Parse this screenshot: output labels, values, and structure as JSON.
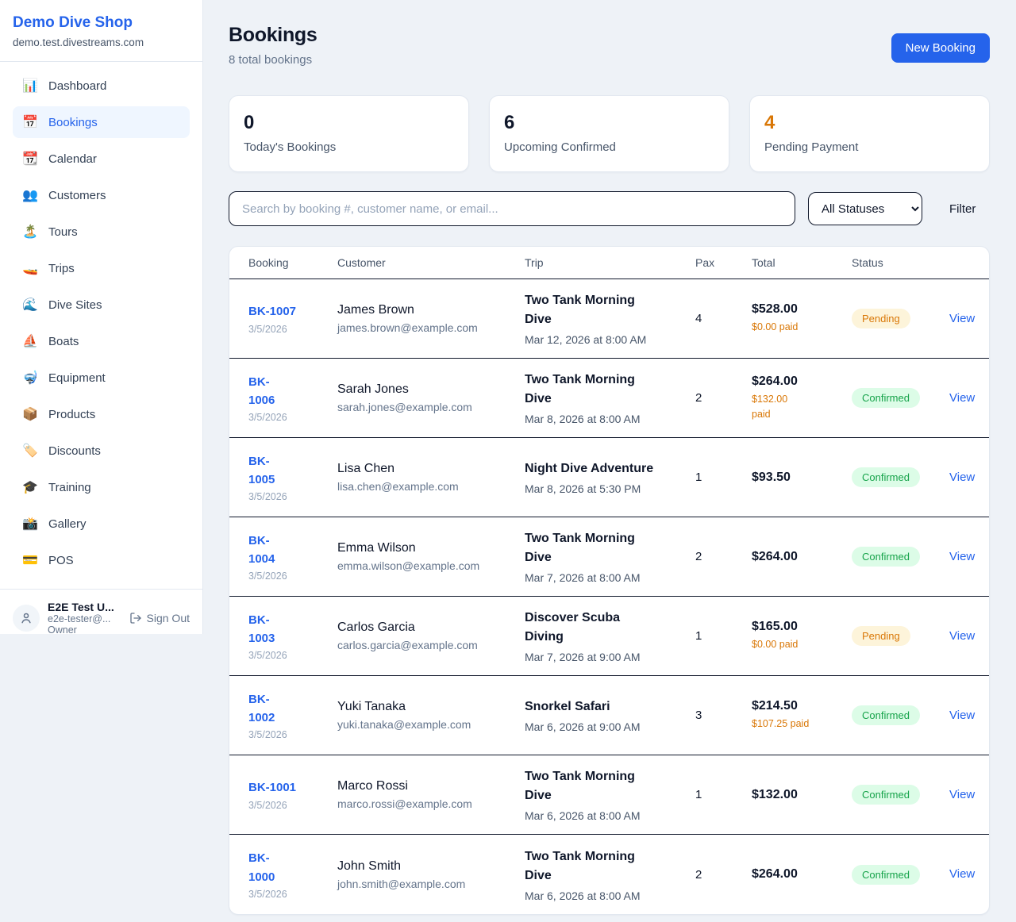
{
  "colors": {
    "accent": "#2563eb",
    "page_bg": "#eef2f7",
    "pending_text": "#d97706",
    "pending_bg": "#fdf4da",
    "confirmed_text": "#16a34a",
    "confirmed_bg": "#dcfce7",
    "paid_text": "#d97706",
    "row_divider": "#0f172a"
  },
  "sidebar": {
    "shop_name": "Demo Dive Shop",
    "domain": "demo.test.divestreams.com",
    "active_item": "Bookings",
    "items": [
      {
        "label": "Dashboard",
        "icon": "📊",
        "icon_name": "bar-chart-icon"
      },
      {
        "label": "Bookings",
        "icon": "📅",
        "icon_name": "calendar-icon"
      },
      {
        "label": "Calendar",
        "icon": "📆",
        "icon_name": "tear-off-calendar-icon"
      },
      {
        "label": "Customers",
        "icon": "👥",
        "icon_name": "users-icon"
      },
      {
        "label": "Tours",
        "icon": "🏝️",
        "icon_name": "island-icon"
      },
      {
        "label": "Trips",
        "icon": "🚤",
        "icon_name": "speedboat-icon"
      },
      {
        "label": "Dive Sites",
        "icon": "🌊",
        "icon_name": "wave-icon"
      },
      {
        "label": "Boats",
        "icon": "⛵",
        "icon_name": "sailboat-icon"
      },
      {
        "label": "Equipment",
        "icon": "🤿",
        "icon_name": "diving-mask-icon"
      },
      {
        "label": "Products",
        "icon": "📦",
        "icon_name": "package-icon"
      },
      {
        "label": "Discounts",
        "icon": "🏷️",
        "icon_name": "label-tag-icon"
      },
      {
        "label": "Training",
        "icon": "🎓",
        "icon_name": "graduation-cap-icon"
      },
      {
        "label": "Gallery",
        "icon": "📸",
        "icon_name": "camera-flash-icon"
      },
      {
        "label": "POS",
        "icon": "💳",
        "icon_name": "credit-card-icon"
      }
    ],
    "user": {
      "name": "E2E Test U...",
      "email": "e2e-tester@...",
      "role": "Owner",
      "sign_out_label": "Sign Out"
    }
  },
  "header": {
    "title": "Bookings",
    "subtitle": "8 total bookings",
    "new_booking_label": "New Booking"
  },
  "stats": [
    {
      "value": "0",
      "label": "Today's Bookings",
      "value_color": "#0f172a"
    },
    {
      "value": "6",
      "label": "Upcoming Confirmed",
      "value_color": "#0f172a"
    },
    {
      "value": "4",
      "label": "Pending Payment",
      "value_color": "#d97706"
    }
  ],
  "filters": {
    "search_placeholder": "Search by booking #, customer name, or email...",
    "status_select_value": "All Statuses",
    "filter_label": "Filter"
  },
  "table": {
    "columns": [
      "Booking",
      "Customer",
      "Trip",
      "Pax",
      "Total",
      "Status"
    ],
    "view_label": "View",
    "rows": [
      {
        "id_lines": [
          "BK-1007"
        ],
        "date": "3/5/2026",
        "name": "James Brown",
        "email": "james.brown@example.com",
        "trip_lines": [
          "Two Tank Morning",
          "Dive"
        ],
        "datetime": "Mar 12, 2026 at 8:00 AM",
        "pax": "4",
        "total": "$528.00",
        "paid_lines": [
          "$0.00 paid"
        ],
        "status": "Pending"
      },
      {
        "id_lines": [
          "BK-",
          "1006"
        ],
        "date": "3/5/2026",
        "name": "Sarah Jones",
        "email": "sarah.jones@example.com",
        "trip_lines": [
          "Two Tank Morning",
          "Dive"
        ],
        "datetime": "Mar 8, 2026 at 8:00 AM",
        "pax": "2",
        "total": "$264.00",
        "paid_lines": [
          "$132.00",
          "paid"
        ],
        "status": "Confirmed"
      },
      {
        "id_lines": [
          "BK-",
          "1005"
        ],
        "date": "3/5/2026",
        "name": "Lisa Chen",
        "email": "lisa.chen@example.com",
        "trip_lines": [
          "Night Dive Adventure"
        ],
        "datetime": "Mar 8, 2026 at 5:30 PM",
        "pax": "1",
        "total": "$93.50",
        "paid_lines": [],
        "status": "Confirmed"
      },
      {
        "id_lines": [
          "BK-",
          "1004"
        ],
        "date": "3/5/2026",
        "name": "Emma Wilson",
        "email": "emma.wilson@example.com",
        "trip_lines": [
          "Two Tank Morning",
          "Dive"
        ],
        "datetime": "Mar 7, 2026 at 8:00 AM",
        "pax": "2",
        "total": "$264.00",
        "paid_lines": [],
        "status": "Confirmed"
      },
      {
        "id_lines": [
          "BK-",
          "1003"
        ],
        "date": "3/5/2026",
        "name": "Carlos Garcia",
        "email": "carlos.garcia@example.com",
        "trip_lines": [
          "Discover Scuba",
          "Diving"
        ],
        "datetime": "Mar 7, 2026 at 9:00 AM",
        "pax": "1",
        "total": "$165.00",
        "paid_lines": [
          "$0.00 paid"
        ],
        "status": "Pending"
      },
      {
        "id_lines": [
          "BK-",
          "1002"
        ],
        "date": "3/5/2026",
        "name": "Yuki Tanaka",
        "email": "yuki.tanaka@example.com",
        "trip_lines": [
          "Snorkel Safari"
        ],
        "datetime": "Mar 6, 2026 at 9:00 AM",
        "pax": "3",
        "total": "$214.50",
        "paid_lines": [
          "$107.25 paid"
        ],
        "status": "Confirmed"
      },
      {
        "id_lines": [
          "BK-1001"
        ],
        "date": "3/5/2026",
        "name": "Marco Rossi",
        "email": "marco.rossi@example.com",
        "trip_lines": [
          "Two Tank Morning",
          "Dive"
        ],
        "datetime": "Mar 6, 2026 at 8:00 AM",
        "pax": "1",
        "total": "$132.00",
        "paid_lines": [],
        "status": "Confirmed"
      },
      {
        "id_lines": [
          "BK-",
          "1000"
        ],
        "date": "3/5/2026",
        "name": "John Smith",
        "email": "john.smith@example.com",
        "trip_lines": [
          "Two Tank Morning",
          "Dive"
        ],
        "datetime": "Mar 6, 2026 at 8:00 AM",
        "pax": "2",
        "total": "$264.00",
        "paid_lines": [],
        "status": "Confirmed"
      }
    ]
  }
}
